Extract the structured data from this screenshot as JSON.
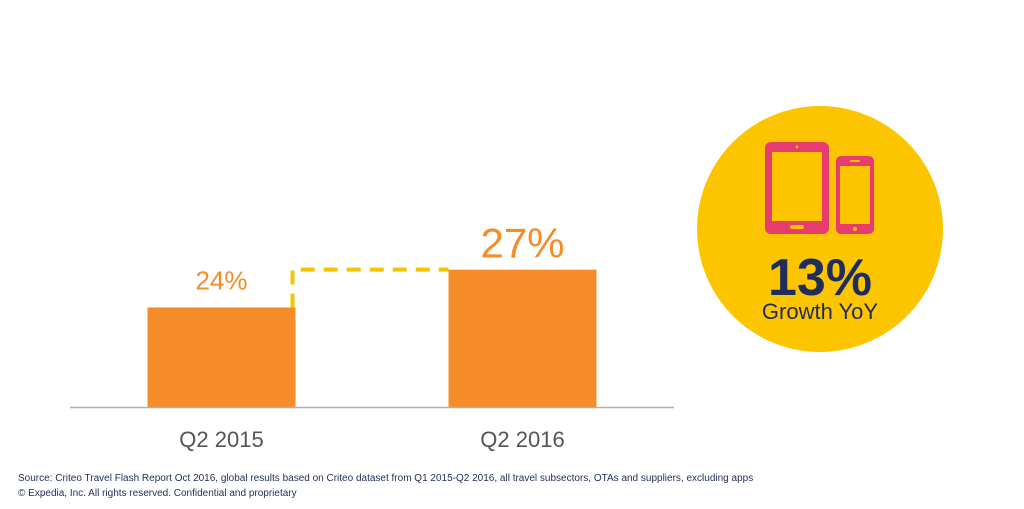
{
  "chart_data": {
    "type": "bar",
    "categories": [
      "Q2 2015",
      "Q2 2016"
    ],
    "values": [
      24,
      27
    ],
    "value_labels": [
      "24%",
      "27%"
    ],
    "title": "",
    "xlabel": "",
    "ylabel": "",
    "grid": false,
    "legend": "none"
  },
  "colors": {
    "bar": "#f58c29",
    "value_label": "#f58c29",
    "category_label": "#555555",
    "axis": "#b0b0b0",
    "connector": "#f5c400",
    "badge": "#fdc500",
    "devices": "#e83c6e",
    "badge_text": "#1f2d5a"
  },
  "badge": {
    "percent": "13%",
    "caption": "Growth YoY",
    "icons": [
      "tablet-icon",
      "smartphone-icon"
    ]
  },
  "footer": {
    "source": "Source: Criteo Travel Flash Report Oct 2016, global results based on Criteo dataset from Q1 2015-Q2 2016, all travel subsectors, OTAs and suppliers, excluding apps",
    "copyright": "© Expedia, Inc. All rights reserved. Confidential and proprietary"
  }
}
